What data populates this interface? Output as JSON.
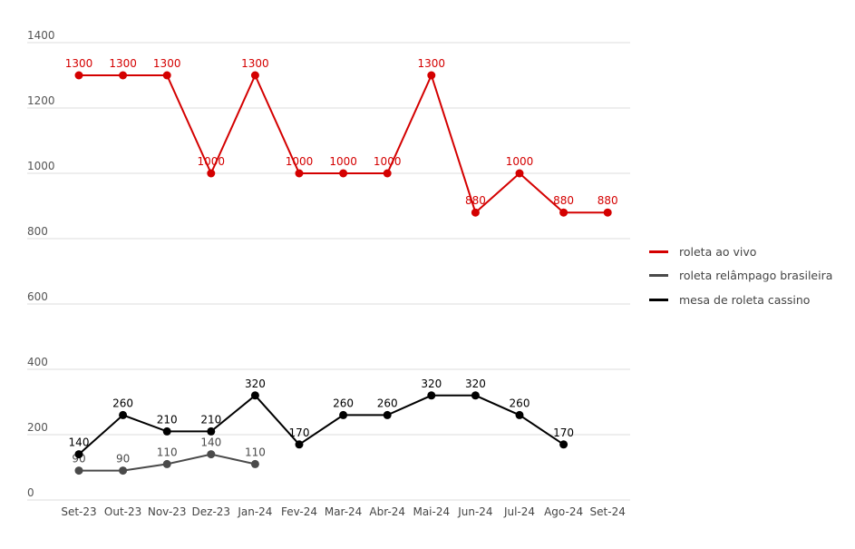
{
  "chart_data": {
    "type": "line",
    "title": "",
    "xlabel": "",
    "ylabel": "",
    "ylim": [
      0,
      1400
    ],
    "yticks": [
      0,
      200,
      400,
      600,
      800,
      1000,
      1200,
      1400
    ],
    "grid": true,
    "legend_position": "right",
    "categories": [
      "Set-23",
      "Out-23",
      "Nov-23",
      "Dez-23",
      "Jan-24",
      "Fev-24",
      "Mar-24",
      "Abr-24",
      "Mai-24",
      "Jun-24",
      "Jul-24",
      "Ago-24",
      "Set-24"
    ],
    "series": [
      {
        "name": "roleta ao vivo",
        "color": "#d40000",
        "values": [
          1300,
          1300,
          1300,
          1000,
          1300,
          1000,
          1000,
          1000,
          1300,
          880,
          1000,
          880,
          880
        ]
      },
      {
        "name": "roleta relâmpago brasileira",
        "color": "#4a4a4a",
        "values": [
          90,
          90,
          110,
          140,
          110,
          null,
          null,
          null,
          null,
          null,
          null,
          null,
          null
        ]
      },
      {
        "name": "mesa de roleta cassino",
        "color": "#000000",
        "values": [
          140,
          260,
          210,
          210,
          320,
          170,
          260,
          260,
          320,
          320,
          260,
          170,
          null
        ]
      }
    ]
  }
}
